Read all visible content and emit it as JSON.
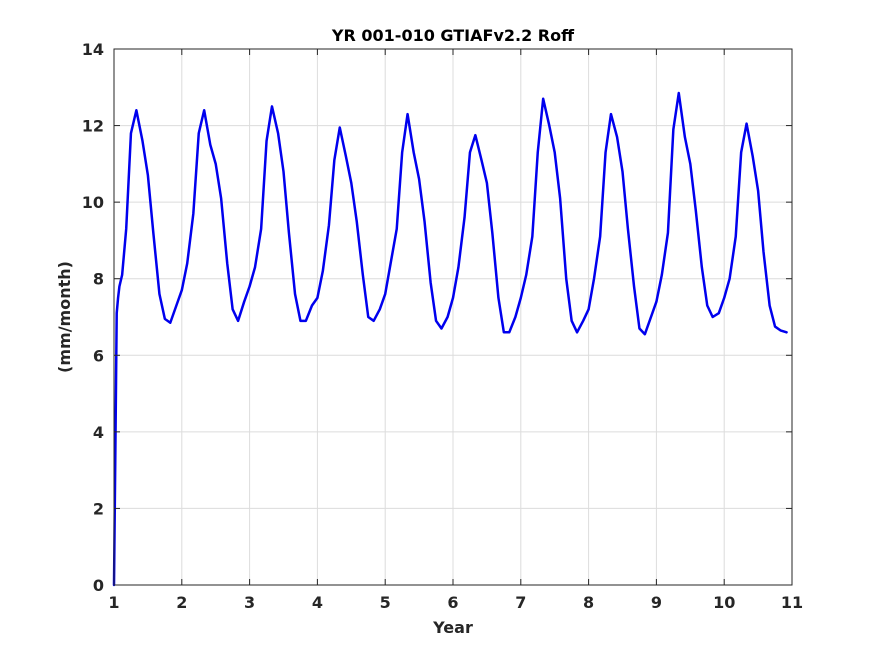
{
  "chart_data": {
    "type": "line",
    "title": "YR 001-010 GTIAFv2.2 Roff",
    "xlabel": "Year",
    "ylabel": "(mm/month)",
    "xlim": [
      1,
      11
    ],
    "ylim": [
      0,
      14
    ],
    "xticks": [
      1,
      2,
      3,
      4,
      5,
      6,
      7,
      8,
      9,
      10,
      11
    ],
    "yticks": [
      0,
      2,
      4,
      6,
      8,
      10,
      12,
      14
    ],
    "grid": true,
    "legend": "none",
    "series_color": "#0000ee",
    "series": [
      {
        "x": [
          1.0,
          1.02,
          1.04,
          1.06,
          1.08,
          1.12,
          1.18,
          1.25,
          1.33,
          1.42,
          1.5,
          1.58,
          1.67,
          1.75,
          1.83,
          1.92,
          2.0,
          2.08,
          2.17,
          2.25,
          2.33,
          2.42,
          2.5,
          2.58,
          2.67,
          2.75,
          2.83,
          2.92,
          3.0,
          3.08,
          3.17,
          3.25,
          3.33,
          3.42,
          3.5,
          3.58,
          3.67,
          3.75,
          3.83,
          3.92,
          4.0,
          4.08,
          4.17,
          4.25,
          4.33,
          4.42,
          4.5,
          4.58,
          4.67,
          4.75,
          4.83,
          4.92,
          5.0,
          5.08,
          5.17,
          5.25,
          5.33,
          5.42,
          5.5,
          5.58,
          5.67,
          5.75,
          5.83,
          5.92,
          6.0,
          6.08,
          6.17,
          6.25,
          6.33,
          6.42,
          6.5,
          6.58,
          6.67,
          6.75,
          6.83,
          6.92,
          7.0,
          7.08,
          7.17,
          7.25,
          7.33,
          7.42,
          7.5,
          7.58,
          7.67,
          7.75,
          7.83,
          7.92,
          8.0,
          8.08,
          8.17,
          8.25,
          8.33,
          8.42,
          8.5,
          8.58,
          8.67,
          8.75,
          8.83,
          8.92,
          9.0,
          9.08,
          9.17,
          9.25,
          9.33,
          9.42,
          9.5,
          9.58,
          9.67,
          9.75,
          9.83,
          9.92,
          10.0,
          10.08,
          10.17,
          10.25,
          10.33,
          10.42,
          10.5,
          10.58,
          10.67,
          10.75,
          10.83,
          10.92
        ],
        "y": [
          0.0,
          3.5,
          7.1,
          7.5,
          7.8,
          8.1,
          9.3,
          11.8,
          12.4,
          11.6,
          10.7,
          9.2,
          7.6,
          6.95,
          6.85,
          7.3,
          7.7,
          8.4,
          9.7,
          11.8,
          12.4,
          11.5,
          11.0,
          10.1,
          8.4,
          7.2,
          6.9,
          7.4,
          7.8,
          8.3,
          9.3,
          11.6,
          12.5,
          11.8,
          10.8,
          9.2,
          7.6,
          6.9,
          6.9,
          7.3,
          7.5,
          8.2,
          9.4,
          11.1,
          11.95,
          11.2,
          10.5,
          9.5,
          8.1,
          7.0,
          6.9,
          7.2,
          7.6,
          8.4,
          9.3,
          11.3,
          12.3,
          11.3,
          10.6,
          9.5,
          7.9,
          6.9,
          6.7,
          7.0,
          7.5,
          8.3,
          9.6,
          11.3,
          11.75,
          11.1,
          10.5,
          9.2,
          7.5,
          6.6,
          6.6,
          7.0,
          7.5,
          8.1,
          9.1,
          11.3,
          12.7,
          12.0,
          11.3,
          10.1,
          8.0,
          6.9,
          6.6,
          6.9,
          7.2,
          8.0,
          9.1,
          11.3,
          12.3,
          11.7,
          10.8,
          9.3,
          7.8,
          6.7,
          6.55,
          7.0,
          7.4,
          8.1,
          9.2,
          11.9,
          12.85,
          11.7,
          11.0,
          9.8,
          8.3,
          7.3,
          7.0,
          7.1,
          7.5,
          8.0,
          9.1,
          11.3,
          12.05,
          11.2,
          10.3,
          8.7,
          7.3,
          6.75,
          6.65,
          6.6
        ]
      }
    ]
  }
}
